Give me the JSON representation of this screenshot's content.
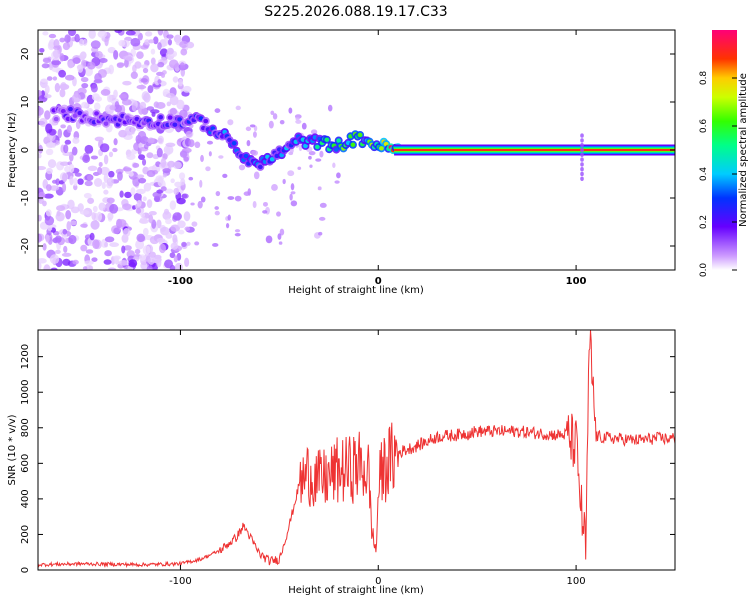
{
  "title": "S225.2026.088.19.17.C33",
  "chart_data": [
    {
      "type": "heatmap",
      "xlabel": "Height of straight line (km)",
      "ylabel": "Frequency (Hz)",
      "xlim": [
        -172,
        150
      ],
      "ylim": [
        -25,
        25
      ],
      "xticks": [
        -100,
        0,
        100
      ],
      "yticks": [
        20,
        10,
        0,
        -10,
        -20
      ],
      "colorbar": {
        "label": "Normalized spectral amplitude",
        "range": [
          0,
          1
        ],
        "ticks": [
          0.0,
          0.2,
          0.4,
          0.6,
          0.8
        ],
        "tick_labels": [
          "0.0",
          "0.2",
          "0.4",
          "0.6",
          "0.8"
        ]
      },
      "ridge": [
        {
          "x": -155,
          "f": 7.5,
          "amp": 0.2
        },
        {
          "x": -140,
          "f": 6.5,
          "amp": 0.2
        },
        {
          "x": -120,
          "f": 6.0,
          "amp": 0.2
        },
        {
          "x": -90,
          "f": 6.0,
          "amp": 0.25
        },
        {
          "x": -75,
          "f": 2.0,
          "amp": 0.35
        },
        {
          "x": -65,
          "f": -3.0,
          "amp": 0.4
        },
        {
          "x": -55,
          "f": -2.0,
          "amp": 0.35
        },
        {
          "x": -40,
          "f": 2.0,
          "amp": 0.35
        },
        {
          "x": -30,
          "f": 1.5,
          "amp": 0.45
        },
        {
          "x": -20,
          "f": 1.0,
          "amp": 0.55
        },
        {
          "x": -10,
          "f": 2.5,
          "amp": 0.6
        },
        {
          "x": 0,
          "f": 1.0,
          "amp": 0.7
        },
        {
          "x": 10,
          "f": 0.0,
          "amp": 0.9
        },
        {
          "x": 150,
          "f": 0.0,
          "amp": 0.9
        }
      ]
    },
    {
      "type": "line",
      "xlabel": "Height of straight line (km)",
      "ylabel": "SNR (10 * v/v)",
      "xlim": [
        -172,
        150
      ],
      "ylim": [
        0,
        1350
      ],
      "xticks": [
        -100,
        0,
        100
      ],
      "yticks": [
        0,
        200,
        400,
        600,
        800,
        1000,
        1200
      ],
      "color": "#ee3333",
      "series": [
        {
          "name": "SNR",
          "x": [
            -172,
            -150,
            -120,
            -100,
            -90,
            -80,
            -72,
            -68,
            -64,
            -60,
            -55,
            -50,
            -45,
            -40,
            -35,
            -30,
            -25,
            -20,
            -15,
            -10,
            -5,
            -3,
            -1,
            0,
            2,
            5,
            10,
            20,
            30,
            40,
            50,
            60,
            70,
            80,
            90,
            95,
            100,
            103,
            105,
            106,
            107,
            110,
            120,
            130,
            140,
            150
          ],
          "values": [
            30,
            35,
            30,
            35,
            60,
            110,
            180,
            250,
            170,
            90,
            50,
            60,
            250,
            480,
            550,
            500,
            520,
            560,
            560,
            590,
            550,
            200,
            100,
            460,
            560,
            600,
            660,
            700,
            750,
            760,
            780,
            780,
            780,
            770,
            760,
            760,
            700,
            300,
            100,
            900,
            1300,
            750,
            740,
            730,
            740,
            740
          ]
        }
      ]
    }
  ]
}
